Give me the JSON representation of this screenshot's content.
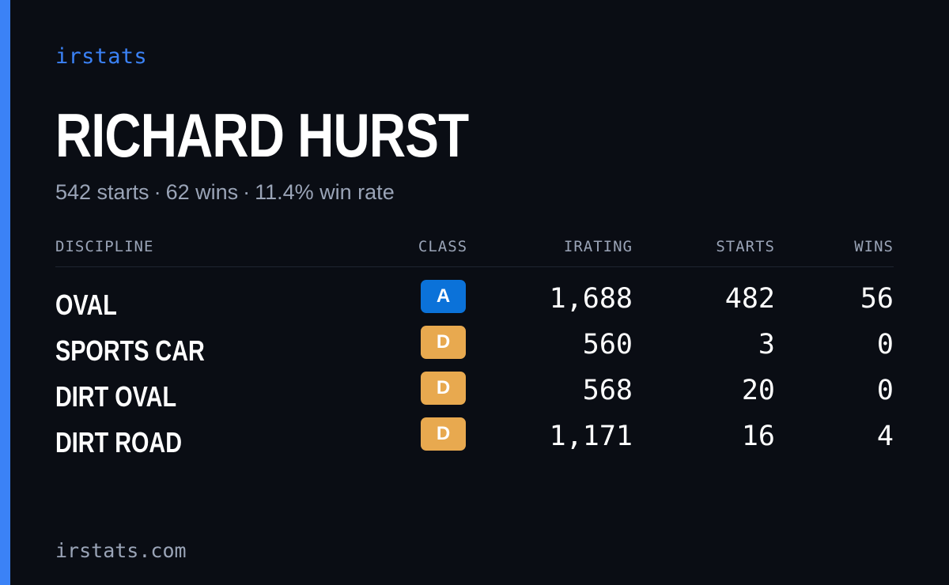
{
  "brand": "irstats",
  "driver": {
    "name": "RICHARD HURST",
    "starts": "542 starts",
    "wins": "62 wins",
    "win_rate": "11.4% win rate",
    "separator": "·"
  },
  "table": {
    "headers": {
      "discipline": "DISCIPLINE",
      "class": "CLASS",
      "irating": "IRATING",
      "starts": "STARTS",
      "wins": "WINS"
    },
    "rows": [
      {
        "discipline": "OVAL",
        "class": "A",
        "class_color": "#0b72d9",
        "irating": "1,688",
        "starts": "482",
        "wins": "56"
      },
      {
        "discipline": "SPORTS CAR",
        "class": "D",
        "class_color": "#e8a94f",
        "irating": "560",
        "starts": "3",
        "wins": "0"
      },
      {
        "discipline": "DIRT OVAL",
        "class": "D",
        "class_color": "#e8a94f",
        "irating": "568",
        "starts": "20",
        "wins": "0"
      },
      {
        "discipline": "DIRT ROAD",
        "class": "D",
        "class_color": "#e8a94f",
        "irating": "1,171",
        "starts": "16",
        "wins": "4"
      }
    ]
  },
  "footer": "irstats.com",
  "colors": {
    "accent": "#3b82f6",
    "background": "#0a0d14",
    "muted_text": "#9aa4b7"
  }
}
